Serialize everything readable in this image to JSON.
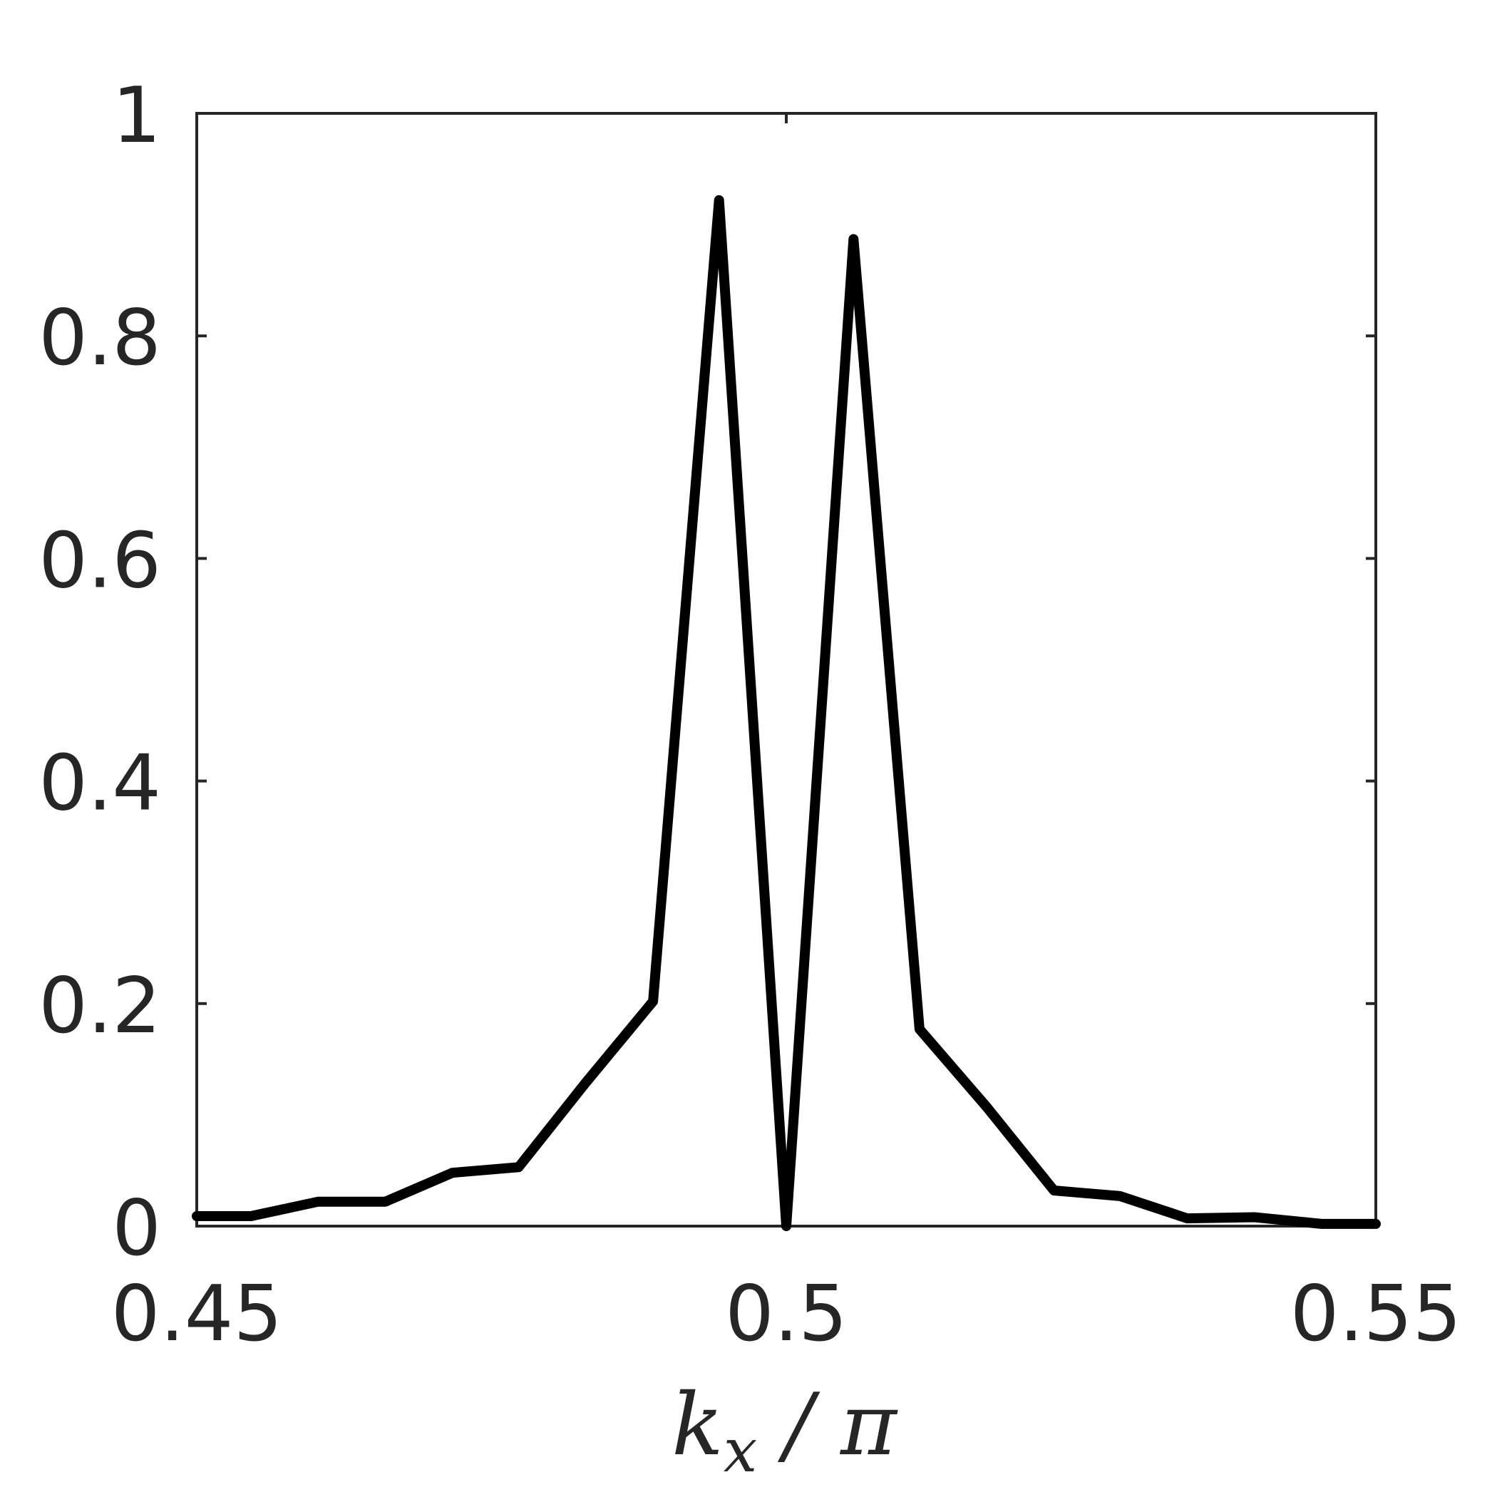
{
  "chart_data": {
    "type": "line",
    "title": "",
    "xlabel": "k_x / π",
    "xlabel_parts": {
      "base": "k",
      "sub": "x",
      "rest": " / π"
    },
    "ylabel": "",
    "xlim": [
      0.45,
      0.55
    ],
    "ylim": [
      0,
      1
    ],
    "xticks": [
      0.45,
      0.5,
      0.55
    ],
    "xtick_labels": [
      "0.45",
      "0.5",
      "0.55"
    ],
    "yticks": [
      0,
      0.2,
      0.4,
      0.6,
      0.8,
      1
    ],
    "ytick_labels": [
      "0",
      "0.2",
      "0.4",
      "0.6",
      "0.8",
      "1"
    ],
    "grid": false,
    "legend": false,
    "series": [
      {
        "color": "#000000",
        "x": [
          0.45,
          0.4546,
          0.4603,
          0.466,
          0.4717,
          0.4773,
          0.483,
          0.4887,
          0.4943,
          0.5,
          0.5057,
          0.5113,
          0.517,
          0.5227,
          0.5283,
          0.534,
          0.5397,
          0.5454,
          0.55
        ],
        "y": [
          0.009,
          0.009,
          0.022,
          0.022,
          0.048,
          0.053,
          0.129,
          0.202,
          0.922,
          0.0,
          0.887,
          0.177,
          0.107,
          0.032,
          0.027,
          0.007,
          0.008,
          0.002,
          0.002
        ]
      }
    ]
  }
}
